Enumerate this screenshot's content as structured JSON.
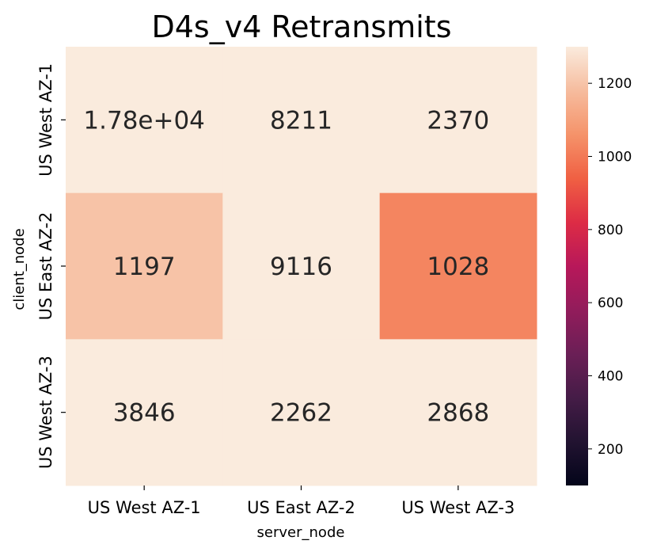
{
  "chart_data": {
    "type": "heatmap",
    "title": "D4s_v4 Retransmits",
    "xlabel": "server_node",
    "ylabel": "client_node",
    "x_categories": [
      "US West AZ-1",
      "US East AZ-2",
      "US West AZ-3"
    ],
    "y_categories": [
      "US West AZ-1",
      "US East AZ-2",
      "US West AZ-3"
    ],
    "values": [
      [
        17800,
        8211,
        2370
      ],
      [
        1197,
        9116,
        1028
      ],
      [
        3846,
        2262,
        2868
      ]
    ],
    "annotations": [
      [
        "1.78e+04",
        "8211",
        "2370"
      ],
      [
        "1197",
        "9116",
        "1028"
      ],
      [
        "3846",
        "2262",
        "2868"
      ]
    ],
    "colorbar": {
      "vmin": 100,
      "vmax": 1300,
      "ticks": [
        "200",
        "400",
        "600",
        "800",
        "1000",
        "1200"
      ],
      "colormap": "rocket"
    }
  }
}
